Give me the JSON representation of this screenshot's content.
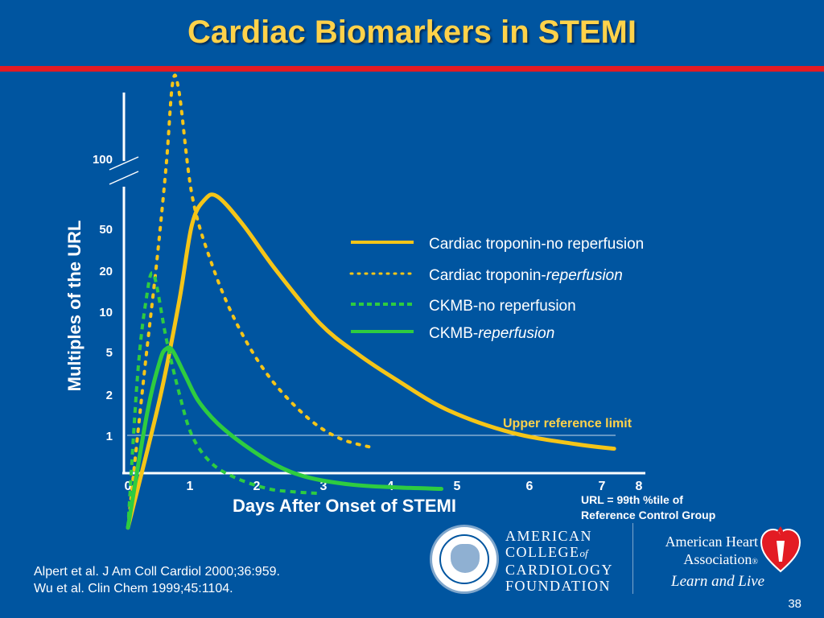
{
  "title": "Cardiac Biomarkers in STEMI",
  "colors": {
    "background": "#0055A0",
    "title": "#FFD24A",
    "rule": "#E31B23",
    "troponin": "#F5C518",
    "ckmb": "#2ECC40",
    "text": "#FFFFFF"
  },
  "chart_data": {
    "type": "line",
    "title": "",
    "xlabel": "Days After Onset of STEMI",
    "ylabel": "Multiples of the URL",
    "y_scale": "log",
    "y_axis_break": true,
    "x_ticks": [
      0,
      1,
      2,
      3,
      4,
      5,
      6,
      7,
      8
    ],
    "x_tick_labels": [
      "0",
      "1",
      "2",
      "3",
      "4",
      "5",
      "6",
      "7",
      "8"
    ],
    "y_ticks": [
      1,
      2,
      5,
      10,
      20,
      50,
      100
    ],
    "y_tick_labels": [
      "1",
      "2",
      "5",
      "10",
      "20",
      "50",
      "100"
    ],
    "xlim": [
      0,
      8
    ],
    "legend_position": "center-right",
    "reference_line": {
      "y": 1,
      "label": "Upper reference limit"
    },
    "series": [
      {
        "name": "Cardiac troponin-no reperfusion",
        "name_prefix": "Cardiac troponin-no reperfusion",
        "name_italic": "",
        "style": "solid",
        "color": "#F5C518",
        "x": [
          0,
          0.5,
          0.8,
          1.0,
          1.2,
          1.4,
          1.8,
          2.3,
          3.0,
          3.6,
          4.2,
          5.0,
          6.0,
          7.0,
          7.6
        ],
        "y": [
          0.18,
          2,
          12,
          50,
          75,
          78,
          50,
          22,
          8,
          4.5,
          2.8,
          1.6,
          1.05,
          0.85,
          0.78
        ]
      },
      {
        "name": "Cardiac troponin-reperfusion",
        "name_prefix": "Cardiac troponin-",
        "name_italic": "reperfusion",
        "style": "dotted",
        "color": "#F5C518",
        "x": [
          0,
          0.25,
          0.45,
          0.6,
          0.7,
          0.8,
          1.0,
          1.3,
          1.7,
          2.2,
          2.8,
          3.3,
          3.8
        ],
        "y": [
          0.18,
          3,
          25,
          110,
          190,
          180,
          80,
          25,
          8,
          3,
          1.4,
          0.95,
          0.8
        ]
      },
      {
        "name": "CKMB-no reperfusion",
        "name_prefix": "CKMB-no reperfusion",
        "name_italic": "",
        "style": "dotted",
        "color": "#2ECC40",
        "x": [
          0,
          0.15,
          0.28,
          0.4,
          0.6,
          0.8,
          1.0,
          1.3,
          1.7,
          2.2,
          2.6,
          3.0
        ],
        "y": [
          0.18,
          3,
          12,
          20,
          6,
          2.2,
          1,
          0.6,
          0.45,
          0.37,
          0.35,
          0.34
        ]
      },
      {
        "name": "CKMB-reperfusion",
        "name_prefix": "CKMB-",
        "name_italic": "reperfusion",
        "style": "solid",
        "color": "#2ECC40",
        "x": [
          0,
          0.3,
          0.5,
          0.6,
          0.7,
          0.9,
          1.1,
          1.4,
          1.8,
          2.3,
          2.8,
          3.5,
          4.2,
          4.9
        ],
        "y": [
          0.18,
          1.5,
          4,
          5,
          4.8,
          3,
          1.9,
          1.25,
          0.85,
          0.58,
          0.46,
          0.4,
          0.38,
          0.37
        ]
      }
    ]
  },
  "url_note": {
    "line1": "URL = 99th %tile of",
    "line2": "Reference Control Group"
  },
  "citations": {
    "line1": "Alpert et al. J Am Coll Cardiol 2000;36:959.",
    "line2": "Wu et al. Clin Chem 1999;45:1104."
  },
  "logos": {
    "accf_line1": "AMERICAN",
    "accf_line2_a": "COLLEGE",
    "accf_line2_b": "of",
    "accf_line3": "CARDIOLOGY",
    "accf_line4": "FOUNDATION",
    "aha_line1": "American Heart",
    "aha_line2": "Association",
    "aha_tagline": "Learn and Live"
  },
  "page_number": "38"
}
